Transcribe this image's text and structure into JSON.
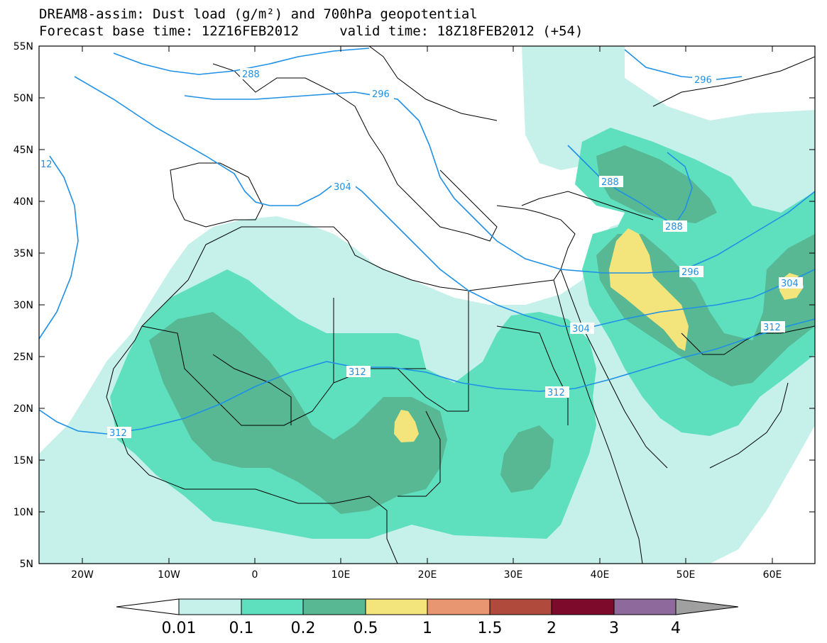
{
  "title": {
    "line1": "DREAM8-assim: Dust load (g/m²) and 700hPa geopotential",
    "line2": "Forecast base time: 12Z16FEB2012     valid time: 18Z18FEB2012 (+54)"
  },
  "axes": {
    "lat_labels": [
      "55N",
      "50N",
      "45N",
      "40N",
      "35N",
      "30N",
      "25N",
      "20N",
      "15N",
      "10N",
      "5N"
    ],
    "lon_labels": [
      "20W",
      "10W",
      "0",
      "10E",
      "20E",
      "30E",
      "40E",
      "50E",
      "60E"
    ]
  },
  "colorbar": {
    "labels": [
      "0.01",
      "0.1",
      "0.2",
      "0.5",
      "1",
      "1.5",
      "2",
      "3",
      "4"
    ],
    "colors": [
      "#c6f0ea",
      "#5ee0bf",
      "#57b893",
      "#f4e47c",
      "#e89572",
      "#b04a3c",
      "#7d0a2a",
      "#8d6a9b"
    ],
    "under_color": "#ffffff",
    "over_color": "#a0a0a0"
  },
  "contour_labels": [
    "288",
    "296",
    "304",
    "312",
    "288",
    "288",
    "296",
    "304",
    "312",
    "312",
    "312",
    "304",
    "296",
    "12"
  ],
  "contour_color": "#1e90e6"
}
